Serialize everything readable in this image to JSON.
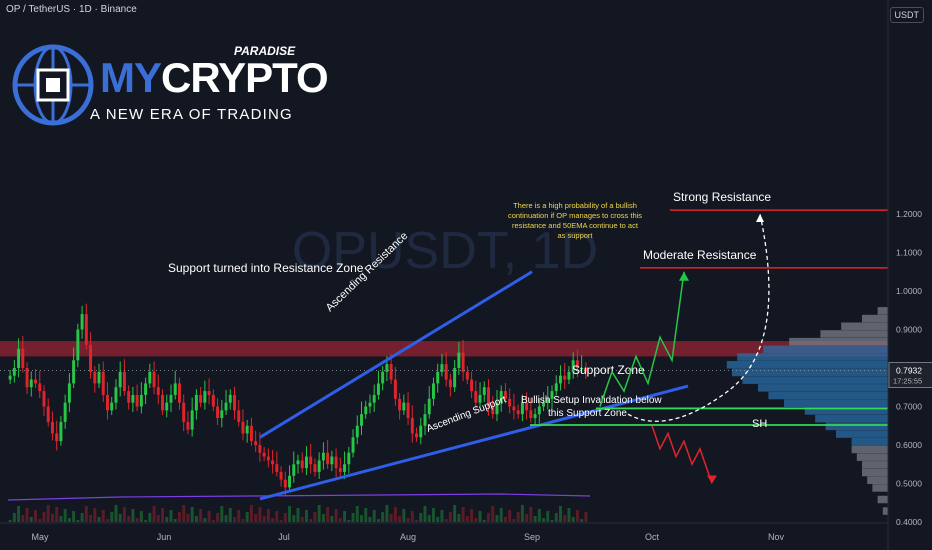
{
  "header": {
    "symbol_line": "OP / TetherUS · 1D · Binance",
    "currency": "USDT"
  },
  "logo": {
    "brand_my": "MY",
    "brand_crypto": "CRYPTO",
    "subtitle": "PARADISE",
    "tagline": "A NEW ERA OF TRADING"
  },
  "watermark": "OPUSDT, 1D",
  "price_badge": {
    "price": "0.7932",
    "countdown": "17:25:55"
  },
  "colors": {
    "background": "#131722",
    "up": "#26c646",
    "down": "#e0242b",
    "trendline": "#2f5ee8",
    "resistance_zone": "#c4283a",
    "support_line": "#33d957",
    "level_line": "#e0242b",
    "profile": "#2a6fa8"
  },
  "annotations": {
    "resistance_zone_label": "Support turned into Resistance Zone",
    "ascending_resistance": "Ascending Resistance",
    "ascending_support": "Ascending Support",
    "strong_resistance": "Strong Resistance",
    "moderate_resistance": "Moderate Resistance",
    "support_zone": "Support Zone",
    "invalidation": [
      "Bullish Setup Invalidation below",
      "this Support Zone"
    ],
    "note": [
      "There is a high probability of a bullish",
      "continuation if OP manages to cross this",
      "resistance and 50EMA continue to act",
      "as support"
    ],
    "sh": "SH"
  },
  "chart_data": {
    "type": "candlestick",
    "pair": "OP / TetherUS",
    "timeframe": "1D",
    "exchange": "Binance",
    "x_labels": [
      "May",
      "Jun",
      "Jul",
      "Aug",
      "Sep",
      "Oct",
      "Nov"
    ],
    "y_ticks": [
      "1.2000",
      "1.1000",
      "1.0000",
      "0.9000",
      "0.8000",
      "0.7000",
      "0.6000",
      "0.5000",
      "0.4000"
    ],
    "ylim": [
      0.4,
      1.28
    ],
    "current_price": 0.7932,
    "levels": {
      "strong_resistance": 1.21,
      "moderate_resistance": 1.06,
      "resistance_zone": [
        0.83,
        0.87
      ],
      "support_zone_top": 0.695,
      "support_zone_bottom": 0.652
    },
    "trendlines": {
      "ascending_resistance": [
        [
          "2024-06-25",
          0.62
        ],
        [
          "2024-09-01",
          1.05
        ]
      ],
      "ascending_support": [
        [
          "2024-06-25",
          0.46
        ],
        [
          "2024-10-10",
          0.753
        ]
      ]
    },
    "closes": [
      0.78,
      0.8,
      0.85,
      0.8,
      0.75,
      0.77,
      0.76,
      0.74,
      0.7,
      0.66,
      0.63,
      0.61,
      0.66,
      0.71,
      0.76,
      0.82,
      0.9,
      0.94,
      0.86,
      0.79,
      0.76,
      0.79,
      0.73,
      0.69,
      0.71,
      0.75,
      0.79,
      0.74,
      0.71,
      0.73,
      0.7,
      0.73,
      0.76,
      0.79,
      0.75,
      0.73,
      0.69,
      0.71,
      0.73,
      0.76,
      0.71,
      0.66,
      0.64,
      0.69,
      0.73,
      0.71,
      0.74,
      0.73,
      0.7,
      0.67,
      0.69,
      0.71,
      0.73,
      0.69,
      0.66,
      0.63,
      0.65,
      0.61,
      0.6,
      0.58,
      0.57,
      0.56,
      0.55,
      0.53,
      0.51,
      0.49,
      0.52,
      0.55,
      0.56,
      0.54,
      0.57,
      0.55,
      0.53,
      0.56,
      0.58,
      0.55,
      0.57,
      0.54,
      0.53,
      0.55,
      0.58,
      0.62,
      0.65,
      0.68,
      0.7,
      0.71,
      0.73,
      0.76,
      0.79,
      0.81,
      0.77,
      0.72,
      0.69,
      0.71,
      0.67,
      0.63,
      0.62,
      0.65,
      0.68,
      0.72,
      0.76,
      0.79,
      0.81,
      0.77,
      0.75,
      0.8,
      0.84,
      0.79,
      0.77,
      0.74,
      0.71,
      0.73,
      0.75,
      0.7,
      0.68,
      0.71,
      0.74,
      0.72,
      0.7,
      0.69,
      0.68,
      0.71,
      0.69,
      0.67,
      0.68,
      0.7,
      0.71,
      0.72,
      0.74,
      0.76,
      0.78,
      0.77,
      0.79,
      0.82,
      0.8,
      0.8,
      0.79
    ],
    "volume_profile": [
      [
        0.42,
        2
      ],
      [
        0.45,
        4
      ],
      [
        0.48,
        6
      ],
      [
        0.5,
        8
      ],
      [
        0.52,
        10
      ],
      [
        0.54,
        10
      ],
      [
        0.56,
        12
      ],
      [
        0.58,
        14
      ],
      [
        0.6,
        14
      ],
      [
        0.62,
        20
      ],
      [
        0.64,
        24
      ],
      [
        0.66,
        28
      ],
      [
        0.68,
        32
      ],
      [
        0.7,
        40
      ],
      [
        0.72,
        46
      ],
      [
        0.74,
        50
      ],
      [
        0.76,
        56
      ],
      [
        0.78,
        60
      ],
      [
        0.8,
        62
      ],
      [
        0.82,
        58
      ],
      [
        0.84,
        48
      ],
      [
        0.86,
        38
      ],
      [
        0.88,
        26
      ],
      [
        0.9,
        18
      ],
      [
        0.92,
        10
      ],
      [
        0.94,
        4
      ]
    ],
    "projection": {
      "bullish_path": [
        [
          "2024-09-18",
          0.7
        ],
        [
          "2024-09-21",
          0.79
        ],
        [
          "2024-09-24",
          0.74
        ],
        [
          "2024-09-27",
          0.83
        ],
        [
          "2024-09-30",
          0.76
        ],
        [
          "2024-10-03",
          0.88
        ],
        [
          "2024-10-06",
          0.82
        ],
        [
          "2024-10-09",
          1.05
        ]
      ],
      "bearish_path": [
        [
          "2024-10-01",
          0.65
        ],
        [
          "2024-10-03",
          0.59
        ],
        [
          "2024-10-05",
          0.63
        ],
        [
          "2024-10-07",
          0.57
        ],
        [
          "2024-10-09",
          0.61
        ],
        [
          "2024-10-11",
          0.55
        ],
        [
          "2024-10-13",
          0.59
        ],
        [
          "2024-10-16",
          0.5
        ]
      ],
      "dashed_path": [
        [
          "2024-09-25",
          0.68
        ],
        [
          "2024-10-05",
          0.66
        ],
        [
          "2024-10-20",
          0.74
        ],
        [
          "2024-10-28",
          1.2
        ]
      ]
    }
  }
}
